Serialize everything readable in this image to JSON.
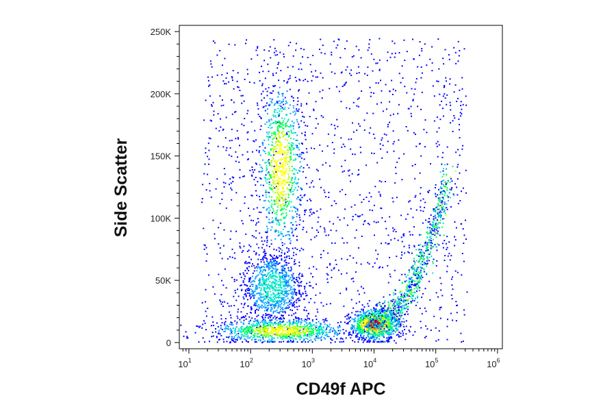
{
  "chart_data": {
    "type": "scatter",
    "style": "flow-cytometry density dot plot (pseudocolor)",
    "xlabel": "CD49f APC",
    "ylabel": "Side Scatter",
    "x_scale": "log",
    "xlim": [
      7,
      1200000
    ],
    "ylim": [
      -5000,
      255000
    ],
    "x_ticks": [
      {
        "value": 10,
        "base": "10",
        "exp": "1"
      },
      {
        "value": 100,
        "base": "10",
        "exp": "2"
      },
      {
        "value": 1000,
        "base": "10",
        "exp": "3"
      },
      {
        "value": 10000,
        "base": "10",
        "exp": "4"
      },
      {
        "value": 100000,
        "base": "10",
        "exp": "5"
      },
      {
        "value": 1000000,
        "base": "10",
        "exp": "6"
      }
    ],
    "y_ticks": [
      {
        "value": 0,
        "label": "0"
      },
      {
        "value": 50000,
        "label": "50K"
      },
      {
        "value": 100000,
        "label": "100K"
      },
      {
        "value": 150000,
        "label": "150K"
      },
      {
        "value": 200000,
        "label": "200K"
      },
      {
        "value": 250000,
        "label": "250K"
      }
    ],
    "density_colors": [
      "#0000ff",
      "#00a0ff",
      "#00e6c8",
      "#00ff50",
      "#b4ff00",
      "#ffff00",
      "#ff9600",
      "#ff0000"
    ],
    "populations": [
      {
        "center_x": 300,
        "center_y": 140000,
        "spread_logx": 0.18,
        "spread_y": 35000,
        "peak_density": 0.75
      },
      {
        "center_x": 220,
        "center_y": 45000,
        "spread_logx": 0.25,
        "spread_y": 15000,
        "peak_density": 0.35
      },
      {
        "center_x": 300,
        "center_y": 10000,
        "spread_logx": 0.55,
        "spread_y": 5000,
        "peak_density": 0.7
      },
      {
        "center_x": 10000,
        "center_y": 15000,
        "spread_logx": 0.2,
        "spread_y": 6000,
        "peak_density": 1.0
      },
      {
        "center_x": 60000,
        "center_y": 80000,
        "spread_logx": 0.12,
        "spread_y": 40000,
        "peak_density": 0.55
      }
    ]
  }
}
